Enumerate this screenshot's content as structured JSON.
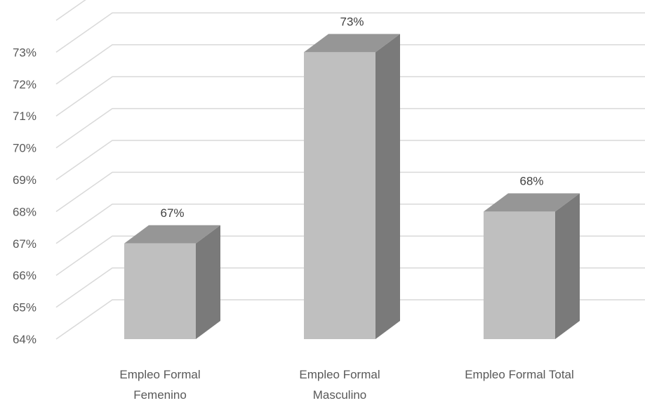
{
  "chart_data": {
    "type": "bar",
    "style": "3d-column",
    "categories": [
      [
        "Empleo Formal",
        "Femenino"
      ],
      [
        "Empleo Formal",
        "Masculino"
      ],
      [
        "Empleo Formal Total"
      ]
    ],
    "values": [
      67,
      73,
      68
    ],
    "data_labels": [
      "67%",
      "73%",
      "68%"
    ],
    "y_ticks": [
      64,
      65,
      66,
      67,
      68,
      69,
      70,
      71,
      72,
      73
    ],
    "y_tick_labels": [
      "64%",
      "65%",
      "66%",
      "67%",
      "68%",
      "69%",
      "70%",
      "71%",
      "72%",
      "73%"
    ],
    "ylim": [
      64,
      73
    ],
    "grid": true,
    "legend": "none",
    "colors": {
      "front": "#bfbfbf",
      "side": "#7a7a7a",
      "top": "#969696",
      "grid": "#d9d9d9"
    }
  }
}
